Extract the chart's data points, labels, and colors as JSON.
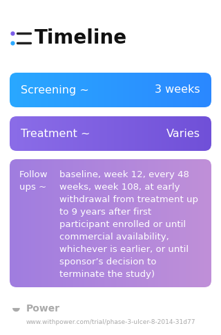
{
  "title": "Timeline",
  "background_color": "#ffffff",
  "rows": [
    {
      "label_left": "Screening ~",
      "label_right": "3 weeks",
      "color_left": "#29a8ff",
      "color_right": "#2b88ff",
      "text_color": "#ffffff",
      "font_size": 11.5
    },
    {
      "label_left": "Treatment ~",
      "label_right": "Varies",
      "color_left": "#8b6de8",
      "color_right": "#7050d8",
      "text_color": "#ffffff",
      "font_size": 11.5
    },
    {
      "label_left": "Follow\nups ~",
      "main_text": "baseline, week 12, every 48\nweeks, week 108, at early\nwithdrawal from treatment up\nto 9 years after first\nparticipant enrolled or until\ncommercial availability,\nwhichever is earlier, or until\nsponsor’s decision to\nterminate the study)",
      "color_left": "#a07de0",
      "color_right": "#c090d8",
      "text_color": "#ffffff",
      "font_size": 9.5
    }
  ],
  "footer_text": "Power",
  "url_text": "www.withpower.com/trial/phase-3-ulcer-8-2014-31d77",
  "title_fontsize": 20,
  "footer_fontsize": 10,
  "url_fontsize": 6.5,
  "icon_purple": "#7b5ce8",
  "icon_blue": "#29a8ff",
  "footer_color": "#aaaaaa"
}
